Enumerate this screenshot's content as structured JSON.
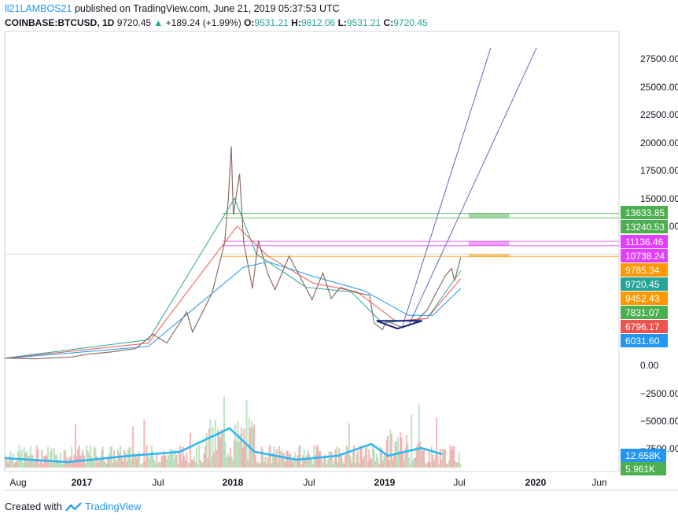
{
  "header": {
    "user": "ll21LAMBOS21",
    "published": " published on TradingView.com, June 21, 2019 05:37:53 UTC",
    "symbol": "COINBASE:BTCUSD, 1D",
    "last": "9720.45",
    "change_arrow": "▲",
    "change": "+189.24 (+1.99%)",
    "o_label": "O:",
    "o": "9531.21",
    "h_label": "H:",
    "h": "9812.06",
    "l_label": "L:",
    "l": "9531.21",
    "c_label": "C:",
    "c": "9720.45"
  },
  "footer": {
    "created": "Created with",
    "brand": "TradingView",
    "logo_icon": "tradingview-logo-icon"
  },
  "chart_data": {
    "type": "candlestick-with-volume",
    "x_ticks": [
      "Aug",
      "2017",
      "Jul",
      "2018",
      "Jul",
      "2019",
      "Jul",
      "2020",
      "Jun"
    ],
    "y_ticks": [
      "27500.00",
      "25000.00",
      "22500.00",
      "20000.00",
      "17500.00",
      "15000.00",
      "12500.00",
      "0.00",
      "−2500.00",
      "−5000.00",
      "−7500.00"
    ],
    "price_ylim": [
      0,
      28500
    ],
    "price_path": [
      [
        "2016-06-21",
        660
      ],
      [
        "2016-09-01",
        590
      ],
      [
        "2016-12-01",
        760
      ],
      [
        "2017-01-05",
        1000
      ],
      [
        "2017-03-01",
        1200
      ],
      [
        "2017-05-01",
        1500
      ],
      [
        "2017-06-12",
        2800
      ],
      [
        "2017-07-15",
        2000
      ],
      [
        "2017-09-01",
        4800
      ],
      [
        "2017-09-15",
        3000
      ],
      [
        "2017-11-01",
        6500
      ],
      [
        "2017-12-01",
        11000
      ],
      [
        "2017-12-10",
        15000
      ],
      [
        "2017-12-17",
        19650
      ],
      [
        "2017-12-22",
        13500
      ],
      [
        "2018-01-06",
        17200
      ],
      [
        "2018-01-16",
        11000
      ],
      [
        "2018-02-06",
        6900
      ],
      [
        "2018-02-20",
        11200
      ],
      [
        "2018-03-15",
        8200
      ],
      [
        "2018-04-01",
        6800
      ],
      [
        "2018-05-05",
        9800
      ],
      [
        "2018-06-29",
        5900
      ],
      [
        "2018-07-25",
        8300
      ],
      [
        "2018-08-14",
        6000
      ],
      [
        "2018-09-05",
        7000
      ],
      [
        "2018-10-15",
        6500
      ],
      [
        "2018-11-14",
        6300
      ],
      [
        "2018-11-25",
        3800
      ],
      [
        "2018-12-15",
        3200
      ],
      [
        "2018-12-25",
        4000
      ],
      [
        "2019-02-01",
        3400
      ],
      [
        "2019-03-01",
        3800
      ],
      [
        "2019-04-02",
        5000
      ],
      [
        "2019-05-14",
        8000
      ],
      [
        "2019-05-30",
        8700
      ],
      [
        "2019-06-06",
        7600
      ],
      [
        "2019-06-21",
        9720
      ]
    ],
    "moving_averages": [
      {
        "color": "#26a69a",
        "points": [
          [
            "2016-06-21",
            650
          ],
          [
            "2017-06-01",
            2300
          ],
          [
            "2017-12-25",
            15000
          ],
          [
            "2018-02-15",
            10000
          ],
          [
            "2018-06-15",
            7000
          ],
          [
            "2018-10-01",
            6600
          ],
          [
            "2018-12-15",
            3800
          ],
          [
            "2019-04-01",
            4200
          ],
          [
            "2019-06-21",
            8500
          ]
        ]
      },
      {
        "color": "#ef5350",
        "points": [
          [
            "2016-06-21",
            640
          ],
          [
            "2017-06-01",
            2000
          ],
          [
            "2017-12-31",
            12500
          ],
          [
            "2018-03-15",
            9800
          ],
          [
            "2018-07-01",
            7400
          ],
          [
            "2018-10-15",
            6600
          ],
          [
            "2019-01-15",
            4000
          ],
          [
            "2019-04-01",
            4200
          ],
          [
            "2019-06-21",
            7800
          ]
        ]
      },
      {
        "color": "#2196f3",
        "points": [
          [
            "2016-06-21",
            630
          ],
          [
            "2017-06-01",
            1700
          ],
          [
            "2018-01-15",
            8800
          ],
          [
            "2018-03-15",
            9300
          ],
          [
            "2018-07-01",
            8000
          ],
          [
            "2018-11-01",
            6700
          ],
          [
            "2019-02-15",
            4500
          ],
          [
            "2019-04-15",
            4500
          ],
          [
            "2019-06-21",
            6900
          ]
        ]
      }
    ],
    "horizontal_levels": [
      {
        "value": 13633.85,
        "color": "#4caf50",
        "label": "13633.85"
      },
      {
        "value": 13240.53,
        "color": "#4caf50",
        "label": "13240.53"
      },
      {
        "value": 11136.46,
        "color": "#e040fb",
        "label": "11136.46"
      },
      {
        "value": 10738.24,
        "color": "#e040fb",
        "label": "10738.24"
      },
      {
        "value": 9785.34,
        "color": "#ff9800",
        "label": "9785.34"
      }
    ],
    "price_labels": [
      {
        "value": 9720.45,
        "color": "#26a69a",
        "label": "9720.45"
      },
      {
        "value": 9452.43,
        "color": "#ff9800",
        "label": "9452.43"
      },
      {
        "value": 7831.07,
        "color": "#4caf50",
        "label": "7831.07"
      },
      {
        "value": 6796.17,
        "color": "#ef5350",
        "label": "6796.17"
      },
      {
        "value": 6031.6,
        "color": "#2196f3",
        "label": "6031.60"
      }
    ],
    "trend_channel": [
      {
        "from": [
          "2019-02-01",
          3500
        ],
        "to": [
          "2019-09-01",
          28500
        ]
      },
      {
        "from": [
          "2019-02-15",
          3500
        ],
        "to": [
          "2019-12-20",
          28500
        ]
      }
    ],
    "highlight_zones": [
      {
        "from": "2019-07-10",
        "to": "2019-10-15",
        "low": 13240.53,
        "high": 13633.85,
        "color": "#4caf50"
      },
      {
        "from": "2019-07-10",
        "to": "2019-10-15",
        "low": 10738.24,
        "high": 11136.46,
        "color": "#e040fb"
      },
      {
        "from": "2019-07-10",
        "to": "2019-10-15",
        "low": 9785.34,
        "high": 10000,
        "color": "#ff9800"
      }
    ],
    "volume_labels": [
      {
        "color": "#2196f3",
        "label": "12.658K"
      },
      {
        "color": "#4caf50",
        "label": "5.961K"
      }
    ]
  }
}
